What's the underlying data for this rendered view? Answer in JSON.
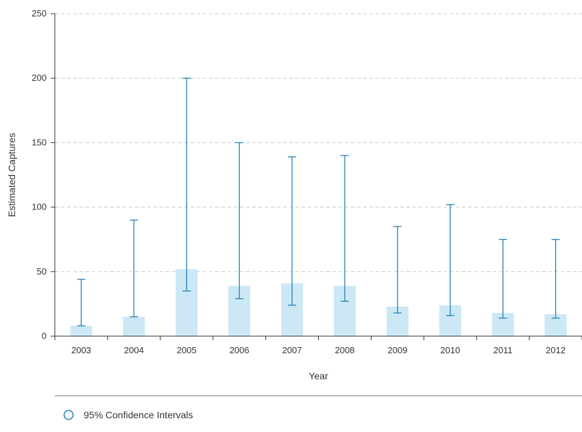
{
  "chart_data": {
    "type": "bar",
    "categories": [
      "2003",
      "2004",
      "2005",
      "2006",
      "2007",
      "2008",
      "2009",
      "2010",
      "2011",
      "2012"
    ],
    "values": [
      8,
      15,
      52,
      39,
      41,
      39,
      23,
      24,
      18,
      17
    ],
    "ci_lower": [
      8,
      15,
      35,
      29,
      24,
      27,
      18,
      16,
      14,
      14
    ],
    "ci_upper": [
      44,
      90,
      200,
      150,
      139,
      140,
      85,
      102,
      75,
      75
    ],
    "xlabel": "Year",
    "ylabel": "Estimated Captures",
    "ylim": [
      0,
      250
    ],
    "yticks": [
      0,
      50,
      100,
      150,
      200,
      250
    ],
    "grid": true,
    "legend": {
      "placement": "bottom-left",
      "entries": [
        "95% Confidence Intervals"
      ]
    },
    "colors": {
      "bar": "#cde8f5",
      "error_bar": "#1f7fb3",
      "grid": "#c8c8c8",
      "axis": "#333333",
      "divider": "#9aa4a8"
    }
  }
}
